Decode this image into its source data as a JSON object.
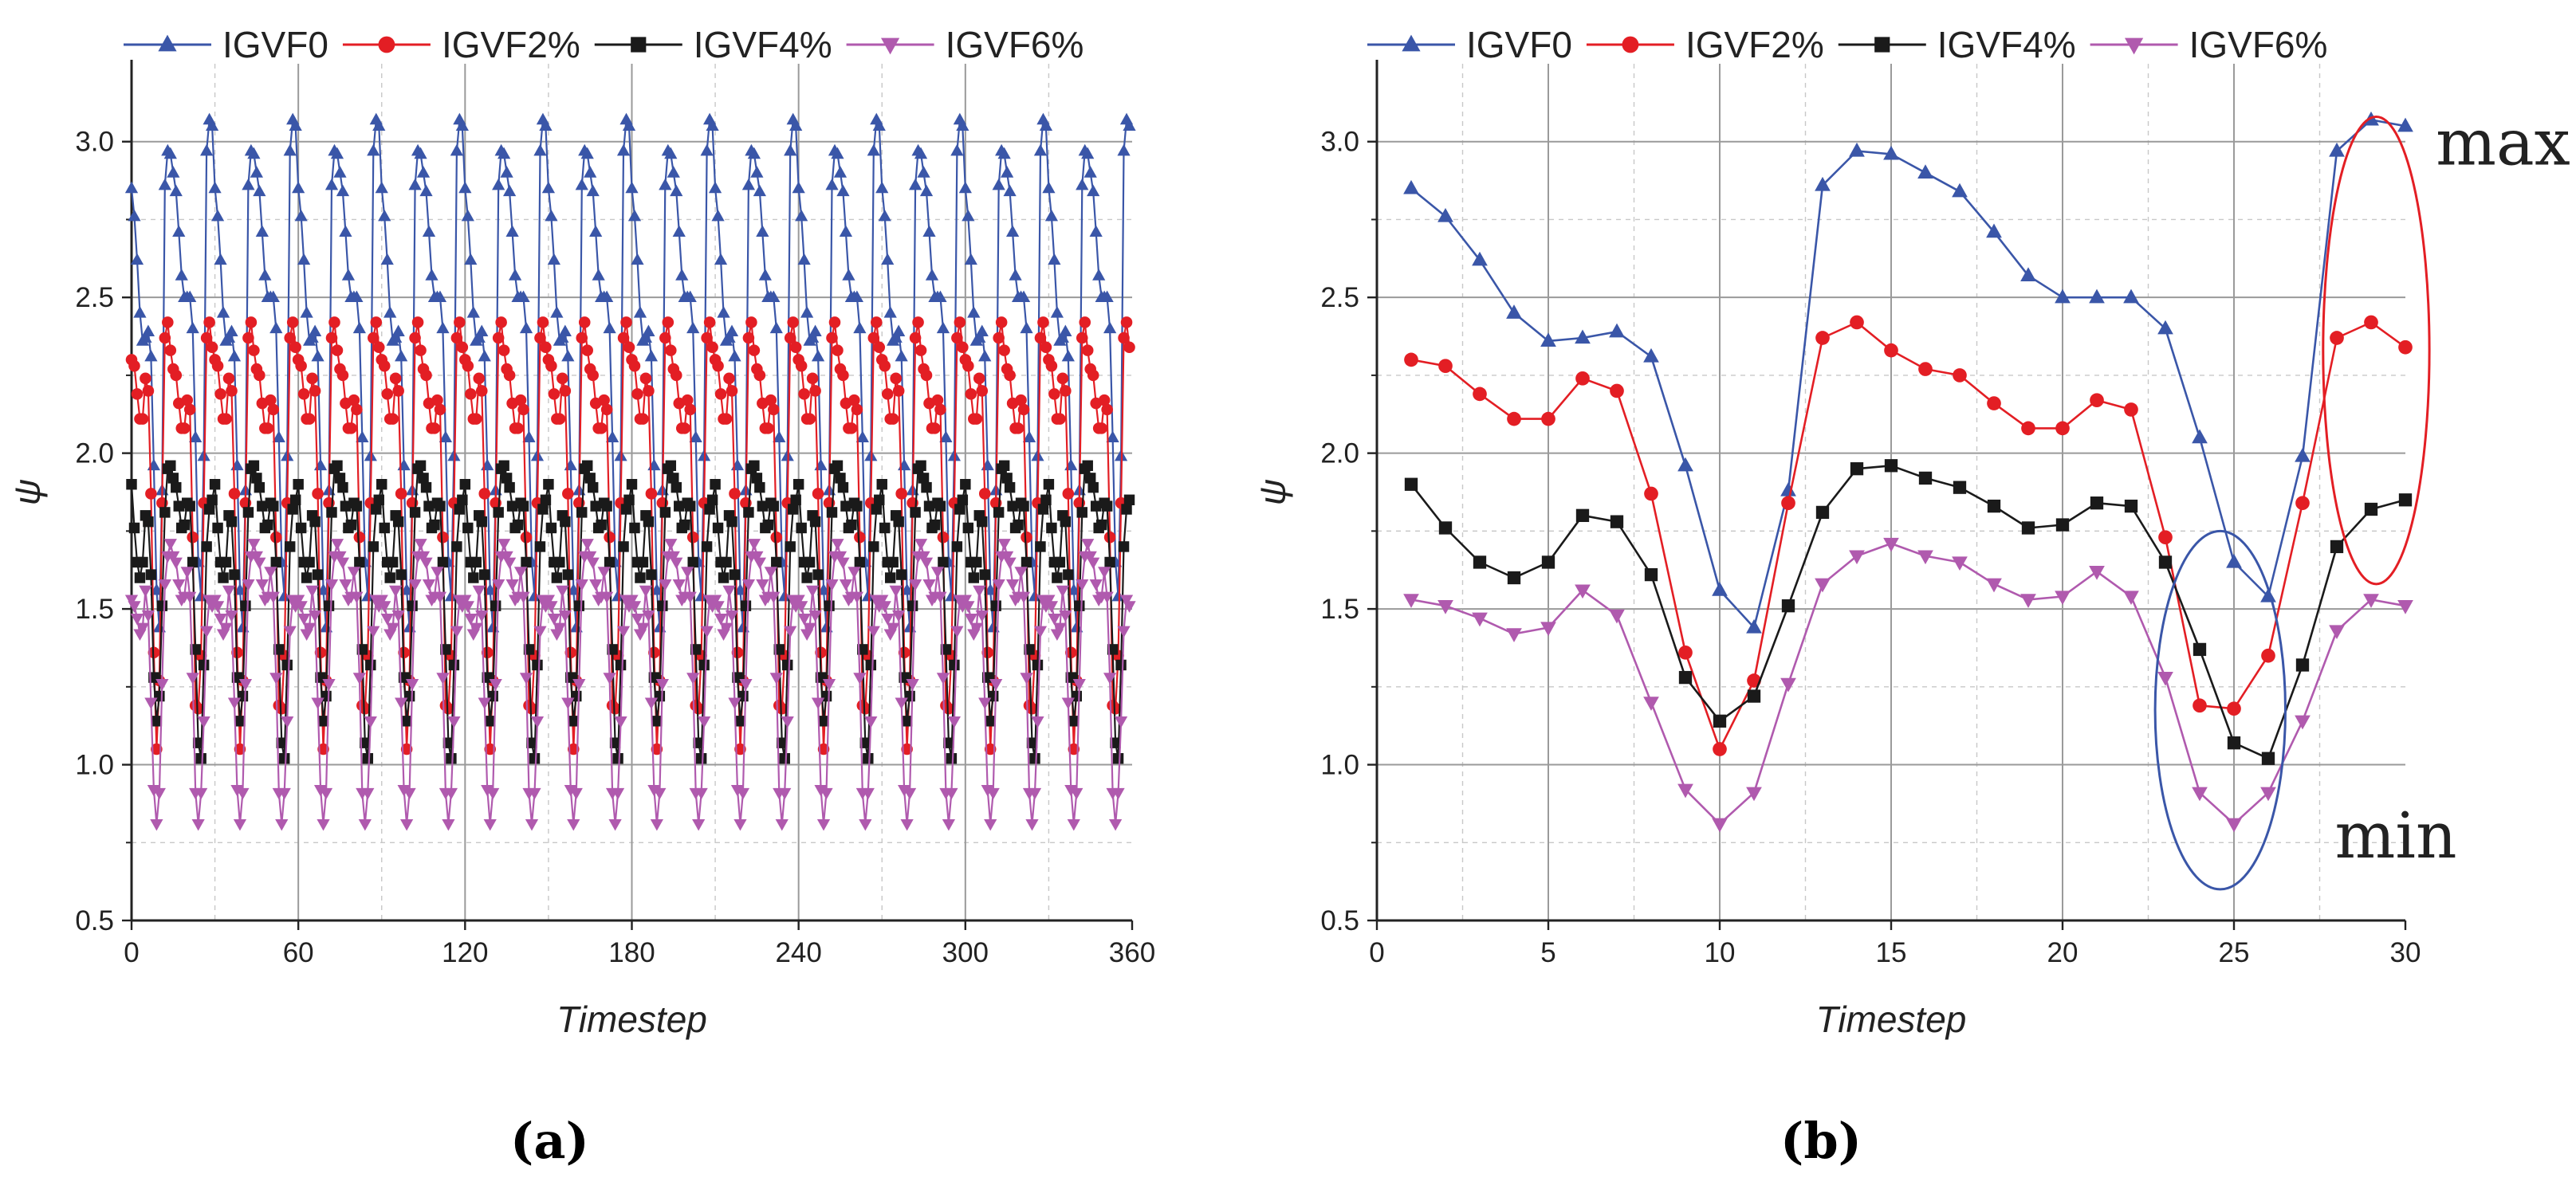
{
  "chart_data": [
    {
      "panel": "(a)",
      "type": "line",
      "xlabel": "Timestep",
      "ylabel": "ψ",
      "xlim": [
        0,
        360
      ],
      "ylim": [
        0.5,
        3.25
      ],
      "xticks": [
        0,
        60,
        120,
        180,
        240,
        300,
        360
      ],
      "yticks": [
        0.5,
        1.0,
        1.5,
        2.0,
        2.5,
        3.0
      ],
      "ytick_labels": [
        "0.5",
        "1.0",
        "1.5",
        "2.0",
        "2.5",
        "3.0"
      ],
      "grid": true,
      "legend": "top",
      "series": [
        {
          "name": "IGVF0",
          "color": "#3a56a8",
          "marker": "triangle-up",
          "values": [
            2.85,
            2.76,
            2.62,
            2.45,
            2.36,
            2.37,
            2.39,
            2.31,
            1.96,
            1.56,
            1.44,
            1.88,
            2.86,
            2.97,
            2.96,
            2.9,
            2.84,
            2.71,
            2.57,
            2.5,
            2.5,
            2.5,
            2.4,
            2.05,
            1.65,
            1.54,
            1.99,
            2.97,
            3.07,
            3.05
          ]
        },
        {
          "name": "IGVF2%",
          "color": "#e31e24",
          "marker": "circle",
          "values": [
            2.3,
            2.28,
            2.19,
            2.11,
            2.11,
            2.24,
            2.2,
            1.87,
            1.36,
            1.05,
            1.27,
            1.84,
            2.37,
            2.42,
            2.33,
            2.27,
            2.25,
            2.16,
            2.08,
            2.08,
            2.17,
            2.14,
            1.73,
            1.19,
            1.18,
            1.35,
            1.84,
            2.37,
            2.42,
            2.34
          ]
        },
        {
          "name": "IGVF4%",
          "color": "#1a1a1a",
          "marker": "square",
          "values": [
            1.9,
            1.76,
            1.65,
            1.6,
            1.65,
            1.8,
            1.78,
            1.61,
            1.28,
            1.14,
            1.22,
            1.51,
            1.81,
            1.95,
            1.96,
            1.92,
            1.89,
            1.83,
            1.76,
            1.77,
            1.84,
            1.83,
            1.65,
            1.37,
            1.07,
            1.02,
            1.32,
            1.7,
            1.82,
            1.85
          ]
        },
        {
          "name": "IGVF6%",
          "color": "#b05aae",
          "marker": "triangle-down",
          "values": [
            1.53,
            1.51,
            1.47,
            1.42,
            1.44,
            1.56,
            1.48,
            1.2,
            0.92,
            0.81,
            0.91,
            1.26,
            1.58,
            1.67,
            1.71,
            1.67,
            1.65,
            1.58,
            1.53,
            1.54,
            1.62,
            1.54,
            1.28,
            0.91,
            0.81,
            0.91,
            1.14,
            1.43,
            1.53,
            1.51
          ]
        }
      ],
      "note": "360 timesteps: the 30-step sequence repeats 12 times"
    },
    {
      "panel": "(b)",
      "type": "line",
      "xlabel": "Timestep",
      "ylabel": "ψ",
      "xlim": [
        0,
        30
      ],
      "ylim": [
        0.5,
        3.25
      ],
      "xticks": [
        0,
        5,
        10,
        15,
        20,
        25,
        30
      ],
      "yticks": [
        0.5,
        1.0,
        1.5,
        2.0,
        2.5,
        3.0
      ],
      "ytick_labels": [
        "0.5",
        "1.0",
        "1.5",
        "2.0",
        "2.5",
        "3.0"
      ],
      "grid": true,
      "legend": "top",
      "x": [
        1,
        2,
        3,
        4,
        5,
        6,
        7,
        8,
        9,
        10,
        11,
        12,
        13,
        14,
        15,
        16,
        17,
        18,
        19,
        20,
        21,
        22,
        23,
        24,
        25,
        26,
        27,
        28,
        29,
        30
      ],
      "series": [
        {
          "name": "IGVF0",
          "color": "#3a56a8",
          "marker": "triangle-up",
          "values": [
            2.85,
            2.76,
            2.62,
            2.45,
            2.36,
            2.37,
            2.39,
            2.31,
            1.96,
            1.56,
            1.44,
            1.88,
            2.86,
            2.97,
            2.96,
            2.9,
            2.84,
            2.71,
            2.57,
            2.5,
            2.5,
            2.5,
            2.4,
            2.05,
            1.65,
            1.54,
            1.99,
            2.97,
            3.07,
            3.05
          ]
        },
        {
          "name": "IGVF2%",
          "color": "#e31e24",
          "marker": "circle",
          "values": [
            2.3,
            2.28,
            2.19,
            2.11,
            2.11,
            2.24,
            2.2,
            1.87,
            1.36,
            1.05,
            1.27,
            1.84,
            2.37,
            2.42,
            2.33,
            2.27,
            2.25,
            2.16,
            2.08,
            2.08,
            2.17,
            2.14,
            1.73,
            1.19,
            1.18,
            1.35,
            1.84,
            2.37,
            2.42,
            2.34
          ]
        },
        {
          "name": "IGVF4%",
          "color": "#1a1a1a",
          "marker": "square",
          "values": [
            1.9,
            1.76,
            1.65,
            1.6,
            1.65,
            1.8,
            1.78,
            1.61,
            1.28,
            1.14,
            1.22,
            1.51,
            1.81,
            1.95,
            1.96,
            1.92,
            1.89,
            1.83,
            1.76,
            1.77,
            1.84,
            1.83,
            1.65,
            1.37,
            1.07,
            1.02,
            1.32,
            1.7,
            1.82,
            1.85
          ]
        },
        {
          "name": "IGVF6%",
          "color": "#b05aae",
          "marker": "triangle-down",
          "values": [
            1.53,
            1.51,
            1.47,
            1.42,
            1.44,
            1.56,
            1.48,
            1.2,
            0.92,
            0.81,
            0.91,
            1.26,
            1.58,
            1.67,
            1.71,
            1.67,
            1.65,
            1.58,
            1.53,
            1.54,
            1.62,
            1.54,
            1.28,
            0.91,
            0.81,
            0.91,
            1.14,
            1.43,
            1.53,
            1.51
          ]
        }
      ],
      "annotations": [
        {
          "text": "max",
          "color": "#e31e24",
          "region_x": [
            27.6,
            30.7
          ],
          "region_y": [
            1.58,
            3.08
          ]
        },
        {
          "text": "min",
          "color": "#3a56a8",
          "region_x": [
            22.7,
            26.5
          ],
          "region_y": [
            0.6,
            1.75
          ]
        }
      ]
    }
  ],
  "panels": {
    "a_label": "(a)",
    "b_label": "(b)"
  }
}
